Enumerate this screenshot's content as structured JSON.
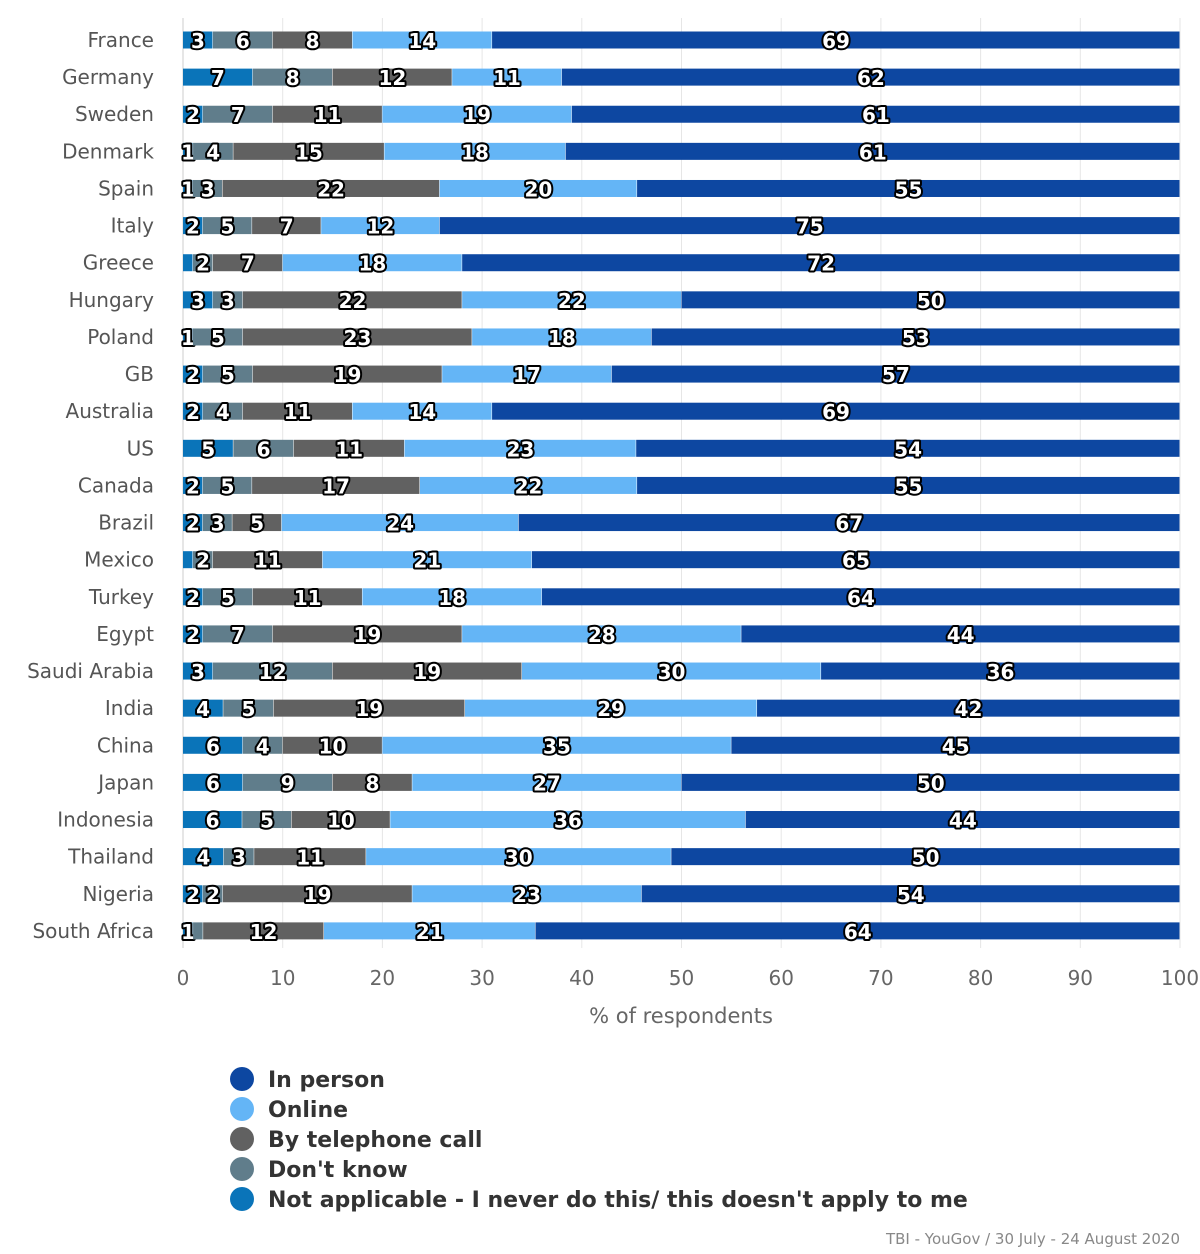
{
  "chart_data": {
    "type": "bar",
    "orientation": "horizontal",
    "stacking": "percent",
    "categories": [
      "France",
      "Germany",
      "Sweden",
      "Denmark",
      "Spain",
      "Italy",
      "Greece",
      "Hungary",
      "Poland",
      "GB",
      "Australia",
      "US",
      "Canada",
      "Brazil",
      "Mexico",
      "Turkey",
      "Egypt",
      "Saudi Arabia",
      "India",
      "China",
      "Japan",
      "Indonesia",
      "Thailand",
      "Nigeria",
      "South Africa"
    ],
    "series": [
      {
        "name": "Not applicable - I never do this/ this doesn't apply to me",
        "color": "#0a74b9",
        "values": [
          3,
          7,
          2,
          1,
          1,
          2,
          1,
          3,
          1,
          2,
          2,
          5,
          2,
          2,
          1,
          2,
          2,
          3,
          4,
          6,
          6,
          6,
          4,
          2,
          1
        ],
        "labels_shown": [
          true,
          true,
          true,
          true,
          true,
          true,
          false,
          true,
          true,
          true,
          true,
          true,
          true,
          true,
          false,
          true,
          true,
          true,
          true,
          true,
          true,
          true,
          true,
          true,
          true
        ]
      },
      {
        "name": "Don't know",
        "color": "#607d8b",
        "values": [
          6,
          8,
          7,
          4,
          3,
          5,
          2,
          3,
          5,
          5,
          4,
          6,
          5,
          3,
          2,
          5,
          7,
          12,
          5,
          4,
          9,
          5,
          3,
          2,
          1
        ],
        "labels_shown": [
          true,
          true,
          true,
          true,
          true,
          true,
          true,
          true,
          true,
          true,
          true,
          true,
          true,
          true,
          true,
          true,
          true,
          true,
          true,
          true,
          true,
          true,
          true,
          true,
          false
        ]
      },
      {
        "name": "By telephone call",
        "color": "#616161",
        "values": [
          8,
          12,
          11,
          15,
          22,
          7,
          7,
          22,
          23,
          19,
          11,
          11,
          17,
          5,
          11,
          11,
          19,
          19,
          19,
          10,
          8,
          10,
          11,
          19,
          12
        ]
      },
      {
        "name": "Online",
        "color": "#64b5f6",
        "values": [
          14,
          11,
          19,
          18,
          20,
          12,
          18,
          22,
          18,
          17,
          14,
          23,
          22,
          24,
          21,
          18,
          28,
          30,
          29,
          35,
          27,
          36,
          30,
          23,
          21
        ]
      },
      {
        "name": "In person",
        "color": "#0d47a1",
        "values": [
          69,
          62,
          61,
          61,
          55,
          75,
          72,
          50,
          53,
          57,
          69,
          54,
          55,
          67,
          65,
          64,
          44,
          36,
          42,
          45,
          50,
          44,
          50,
          54,
          64
        ]
      }
    ],
    "legend_order": [
      "In person",
      "Online",
      "By telephone call",
      "Don't know",
      "Not applicable - I never do this/ this doesn't apply to me"
    ],
    "xlabel": "% of respondents",
    "xlim": [
      0,
      100
    ],
    "xticks": [
      "0",
      "10",
      "20",
      "30",
      "40",
      "50",
      "60",
      "70",
      "80",
      "90",
      "100"
    ],
    "grid": true,
    "legend_position": "bottom-left",
    "credit": "TBI - YouGov / 30 July - 24 August 2020"
  }
}
